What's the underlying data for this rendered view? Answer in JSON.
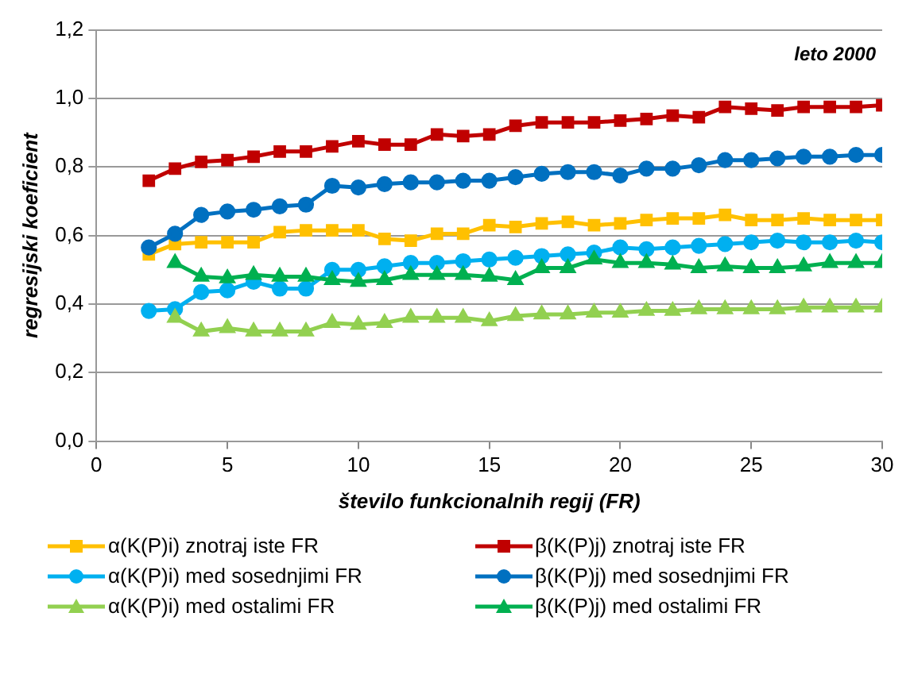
{
  "chart_data": {
    "type": "line",
    "xlabel": "število funkcionalnih regij (FR)",
    "ylabel": "regresijski koeficient",
    "annotations": [
      "leto 2000"
    ],
    "xlim": [
      0,
      30
    ],
    "xticks": [
      0,
      5,
      10,
      15,
      20,
      25,
      30
    ],
    "ylim": [
      0,
      1.2
    ],
    "yticks": [
      {
        "value": 0,
        "label": "0,0"
      },
      {
        "value": 0.2,
        "label": "0,2"
      },
      {
        "value": 0.4,
        "label": "0,4"
      },
      {
        "value": 0.6,
        "label": "0,6"
      },
      {
        "value": 0.8,
        "label": "0,8"
      },
      {
        "value": 1,
        "label": "1,0"
      },
      {
        "value": 1.2,
        "label": "1,2"
      }
    ],
    "grid": "y",
    "legend": "bottom",
    "series": [
      {
        "name": "α(K(P)i) znotraj iste FR",
        "color": "#ffc000",
        "marker": "square",
        "x": [
          2,
          3,
          4,
          5,
          6,
          7,
          8,
          9,
          10,
          11,
          12,
          13,
          14,
          15,
          16,
          17,
          18,
          19,
          20,
          21,
          22,
          23,
          24,
          25,
          26,
          27,
          28,
          29,
          30
        ],
        "values": [
          0.545,
          0.575,
          0.58,
          0.58,
          0.58,
          0.61,
          0.615,
          0.615,
          0.615,
          0.59,
          0.585,
          0.605,
          0.605,
          0.63,
          0.625,
          0.635,
          0.64,
          0.63,
          0.635,
          0.645,
          0.65,
          0.65,
          0.66,
          0.645,
          0.645,
          0.65,
          0.645,
          0.645,
          0.645
        ]
      },
      {
        "name": "β(K(P)j) znotraj iste FR",
        "color": "#c00000",
        "marker": "square",
        "x": [
          2,
          3,
          4,
          5,
          6,
          7,
          8,
          9,
          10,
          11,
          12,
          13,
          14,
          15,
          16,
          17,
          18,
          19,
          20,
          21,
          22,
          23,
          24,
          25,
          26,
          27,
          28,
          29,
          30
        ],
        "values": [
          0.76,
          0.795,
          0.815,
          0.82,
          0.83,
          0.845,
          0.845,
          0.86,
          0.875,
          0.865,
          0.865,
          0.895,
          0.89,
          0.895,
          0.92,
          0.93,
          0.93,
          0.93,
          0.935,
          0.94,
          0.95,
          0.945,
          0.975,
          0.97,
          0.965,
          0.975,
          0.975,
          0.975,
          0.98
        ]
      },
      {
        "name": "α(K(P)i) med sosednjimi FR",
        "color": "#00b0f0",
        "marker": "circle",
        "x": [
          2,
          3,
          4,
          5,
          6,
          7,
          8,
          9,
          10,
          11,
          12,
          13,
          14,
          15,
          16,
          17,
          18,
          19,
          20,
          21,
          22,
          23,
          24,
          25,
          26,
          27,
          28,
          29,
          30
        ],
        "values": [
          0.38,
          0.385,
          0.435,
          0.44,
          0.465,
          0.445,
          0.445,
          0.5,
          0.5,
          0.51,
          0.52,
          0.52,
          0.525,
          0.53,
          0.535,
          0.54,
          0.545,
          0.55,
          0.565,
          0.56,
          0.565,
          0.57,
          0.575,
          0.58,
          0.585,
          0.58,
          0.58,
          0.585,
          0.58
        ]
      },
      {
        "name": "β(K(P)j) med sosednjimi FR",
        "color": "#0070c0",
        "marker": "circle",
        "x": [
          2,
          3,
          4,
          5,
          6,
          7,
          8,
          9,
          10,
          11,
          12,
          13,
          14,
          15,
          16,
          17,
          18,
          19,
          20,
          21,
          22,
          23,
          24,
          25,
          26,
          27,
          28,
          29,
          30
        ],
        "values": [
          0.565,
          0.605,
          0.66,
          0.67,
          0.675,
          0.685,
          0.69,
          0.745,
          0.74,
          0.75,
          0.755,
          0.755,
          0.76,
          0.76,
          0.77,
          0.78,
          0.785,
          0.785,
          0.775,
          0.795,
          0.795,
          0.805,
          0.82,
          0.82,
          0.825,
          0.83,
          0.83,
          0.835,
          0.835
        ]
      },
      {
        "name": "α(K(P)i) med ostalimi FR",
        "color": "#92d050",
        "marker": "triangle",
        "x": [
          3,
          4,
          5,
          6,
          7,
          8,
          9,
          10,
          11,
          12,
          13,
          14,
          15,
          16,
          17,
          18,
          19,
          20,
          21,
          22,
          23,
          24,
          25,
          26,
          27,
          28,
          29,
          30
        ],
        "values": [
          0.36,
          0.32,
          0.33,
          0.32,
          0.32,
          0.32,
          0.345,
          0.34,
          0.345,
          0.36,
          0.36,
          0.36,
          0.35,
          0.365,
          0.37,
          0.37,
          0.375,
          0.375,
          0.38,
          0.38,
          0.385,
          0.385,
          0.385,
          0.385,
          0.39,
          0.39,
          0.39,
          0.39
        ]
      },
      {
        "name": "β(K(P)j) med ostalimi FR",
        "color": "#00b050",
        "marker": "triangle",
        "x": [
          3,
          4,
          5,
          6,
          7,
          8,
          9,
          10,
          11,
          12,
          13,
          14,
          15,
          16,
          17,
          18,
          19,
          20,
          21,
          22,
          23,
          24,
          25,
          26,
          27,
          28,
          29,
          30
        ],
        "values": [
          0.52,
          0.48,
          0.475,
          0.485,
          0.48,
          0.48,
          0.47,
          0.465,
          0.47,
          0.485,
          0.485,
          0.485,
          0.48,
          0.47,
          0.505,
          0.505,
          0.53,
          0.52,
          0.52,
          0.515,
          0.505,
          0.51,
          0.505,
          0.505,
          0.51,
          0.52,
          0.52,
          0.52
        ]
      }
    ]
  }
}
